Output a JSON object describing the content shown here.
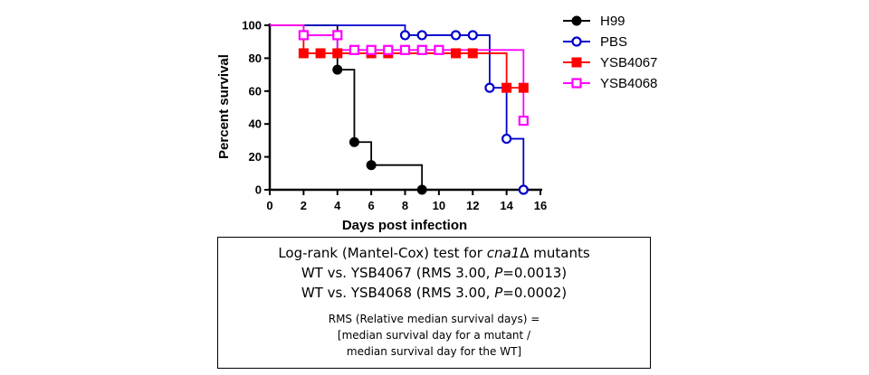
{
  "chart_data": {
    "type": "line",
    "subtype": "kaplan-meier survival curve (step)",
    "xlabel": "Days post infection",
    "ylabel": "Percent survival",
    "xlim": [
      0,
      16
    ],
    "ylim": [
      0,
      100
    ],
    "xticks": [
      0,
      2,
      4,
      6,
      8,
      10,
      12,
      14,
      16
    ],
    "yticks": [
      0,
      20,
      40,
      60,
      80,
      100
    ],
    "legend_position": "right",
    "series": [
      {
        "name": "H99",
        "color": "#000000",
        "marker": "filled-circle",
        "steps": [
          [
            0,
            100
          ],
          [
            4,
            100
          ],
          [
            4,
            73
          ],
          [
            5,
            73
          ],
          [
            5,
            29
          ],
          [
            6,
            29
          ],
          [
            6,
            15
          ],
          [
            9,
            15
          ],
          [
            9,
            0
          ]
        ],
        "markers": [
          [
            4,
            73
          ],
          [
            5,
            29
          ],
          [
            6,
            15
          ],
          [
            9,
            0
          ]
        ]
      },
      {
        "name": "PBS",
        "color": "#0000cc",
        "marker": "open-circle",
        "steps": [
          [
            0,
            100
          ],
          [
            8,
            100
          ],
          [
            8,
            94
          ],
          [
            13,
            94
          ],
          [
            13,
            62
          ],
          [
            14,
            62
          ],
          [
            14,
            31
          ],
          [
            15,
            31
          ],
          [
            15,
            0
          ]
        ],
        "markers": [
          [
            8,
            94
          ],
          [
            9,
            94
          ],
          [
            11,
            94
          ],
          [
            12,
            94
          ],
          [
            13,
            62
          ],
          [
            14,
            31
          ],
          [
            15,
            0
          ]
        ]
      },
      {
        "name": "YSB4067",
        "color": "#ff0000",
        "marker": "filled-square",
        "steps": [
          [
            0,
            100
          ],
          [
            2,
            100
          ],
          [
            2,
            83
          ],
          [
            14,
            83
          ],
          [
            14,
            62
          ],
          [
            15,
            62
          ]
        ],
        "markers": [
          [
            2,
            83
          ],
          [
            3,
            83
          ],
          [
            4,
            83
          ],
          [
            6,
            83
          ],
          [
            7,
            83
          ],
          [
            11,
            83
          ],
          [
            12,
            83
          ],
          [
            14,
            62
          ],
          [
            15,
            62
          ]
        ]
      },
      {
        "name": "YSB4068",
        "color": "#ff00ff",
        "marker": "open-square",
        "steps": [
          [
            0,
            100
          ],
          [
            2,
            100
          ],
          [
            2,
            94
          ],
          [
            4,
            94
          ],
          [
            4,
            85
          ],
          [
            15,
            85
          ],
          [
            15,
            42
          ]
        ],
        "markers": [
          [
            2,
            94
          ],
          [
            4,
            94
          ],
          [
            5,
            85
          ],
          [
            6,
            85
          ],
          [
            7,
            85
          ],
          [
            8,
            85
          ],
          [
            9,
            85
          ],
          [
            10,
            85
          ],
          [
            15,
            42
          ]
        ]
      }
    ]
  },
  "stats_box": {
    "line1_prefix": "Log-rank (Mantel-Cox) test for ",
    "line1_gene": "cna1",
    "line1_suffix": "Δ mutants",
    "line2_prefix": "WT vs. YSB4067 (RMS 3.00, ",
    "line2_p": "P",
    "line2_suffix": "=0.0013)",
    "line3_prefix": "WT vs. YSB4068 (RMS 3.00, ",
    "line3_p": "P",
    "line3_suffix": "=0.0002)",
    "rms_line1": "RMS (Relative median survival days) =",
    "rms_line2": "[median survival day for a mutant  /",
    "rms_line3": "median survival day for the WT]"
  }
}
